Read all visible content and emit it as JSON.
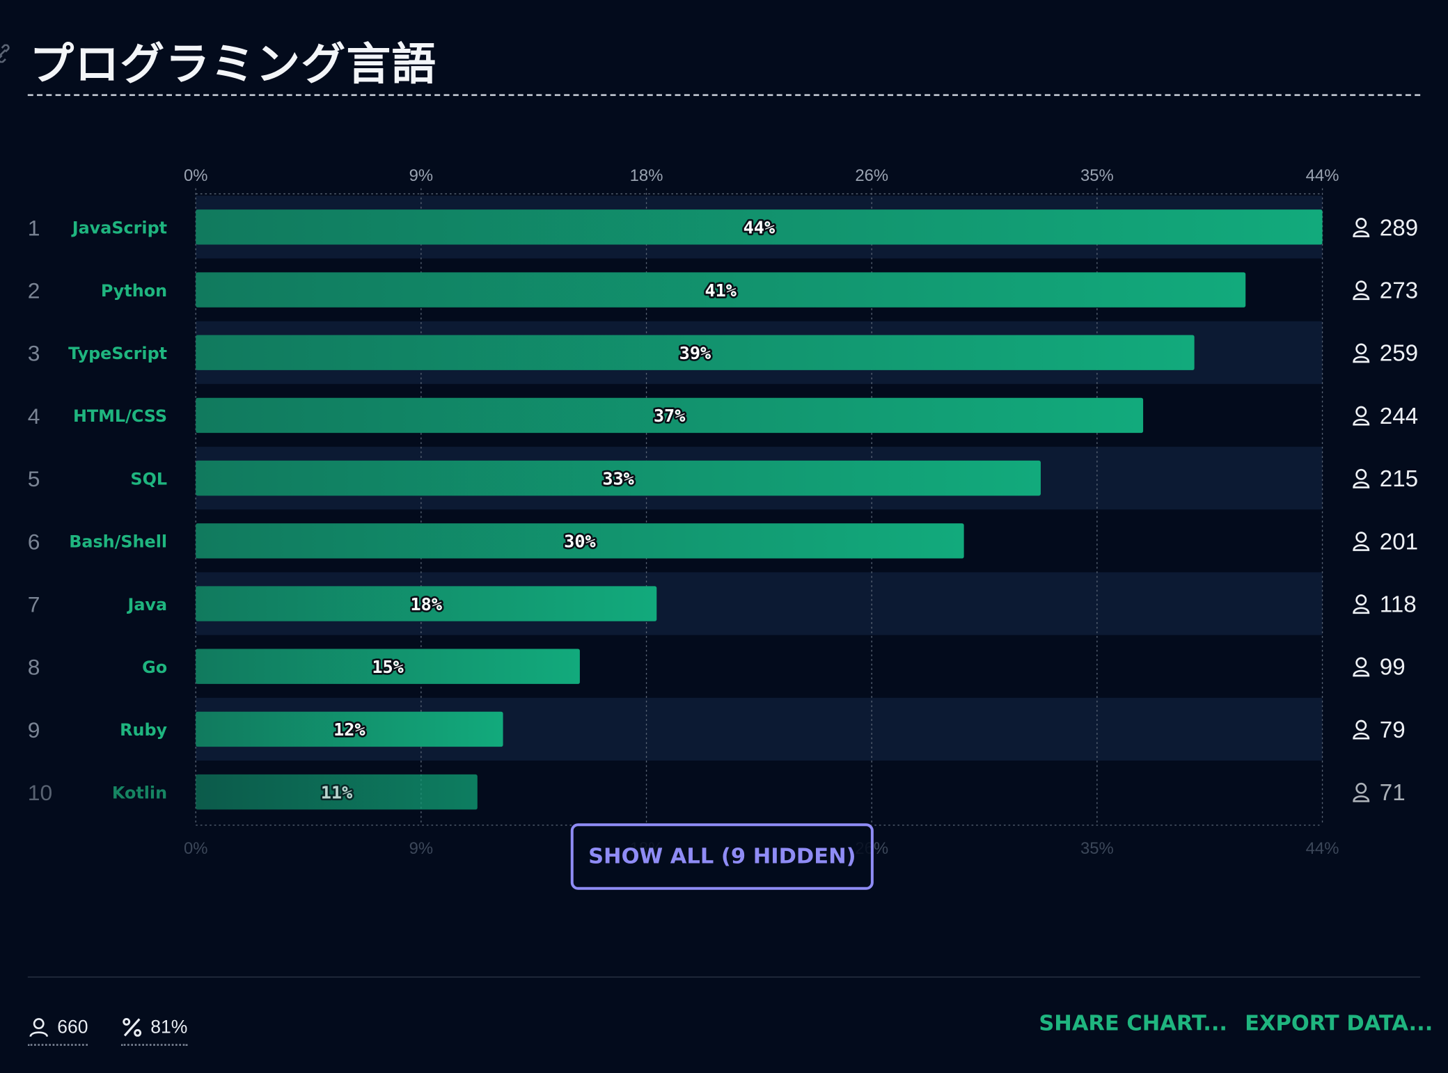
{
  "title": "プログラミング言語",
  "colors": {
    "background": "#030b1c",
    "bar_start": "#117a5e",
    "bar_end": "#12aa7c",
    "label": "#1fb57f",
    "accent": "#8f8cf5"
  },
  "icons": {
    "title": "link-icon",
    "count": "user-icon",
    "stats_users": "user-icon",
    "stats_pct": "percent-icon"
  },
  "chart_data": {
    "type": "bar",
    "orientation": "horizontal",
    "categories": [
      "JavaScript",
      "Python",
      "TypeScript",
      "HTML/CSS",
      "SQL",
      "Bash/Shell",
      "Java",
      "Go",
      "Ruby",
      "Kotlin"
    ],
    "ranks": [
      "1",
      "2",
      "3",
      "4",
      "5",
      "6",
      "7",
      "8",
      "9",
      "10"
    ],
    "values": [
      44,
      41,
      39,
      37,
      33,
      30,
      18,
      15,
      12,
      11
    ],
    "value_labels": [
      "44%",
      "41%",
      "39%",
      "37%",
      "33%",
      "30%",
      "18%",
      "15%",
      "12%",
      "11%"
    ],
    "counts": [
      "289",
      "273",
      "259",
      "244",
      "215",
      "201",
      "118",
      "99",
      "79",
      "71"
    ],
    "ticks": [
      "0%",
      "9%",
      "18%",
      "26%",
      "35%",
      "44%"
    ],
    "tick_values": [
      0,
      8.8,
      17.6,
      26.4,
      35.2,
      44
    ],
    "xlim": [
      0,
      44
    ],
    "grid": true,
    "axis_labels_position": "top-and-bottom"
  },
  "show_all_label": "SHOW ALL (9 HIDDEN)",
  "footer": {
    "users": "660",
    "percent": "81%",
    "share_label": "SHARE CHART...",
    "export_label": "EXPORT DATA..."
  }
}
